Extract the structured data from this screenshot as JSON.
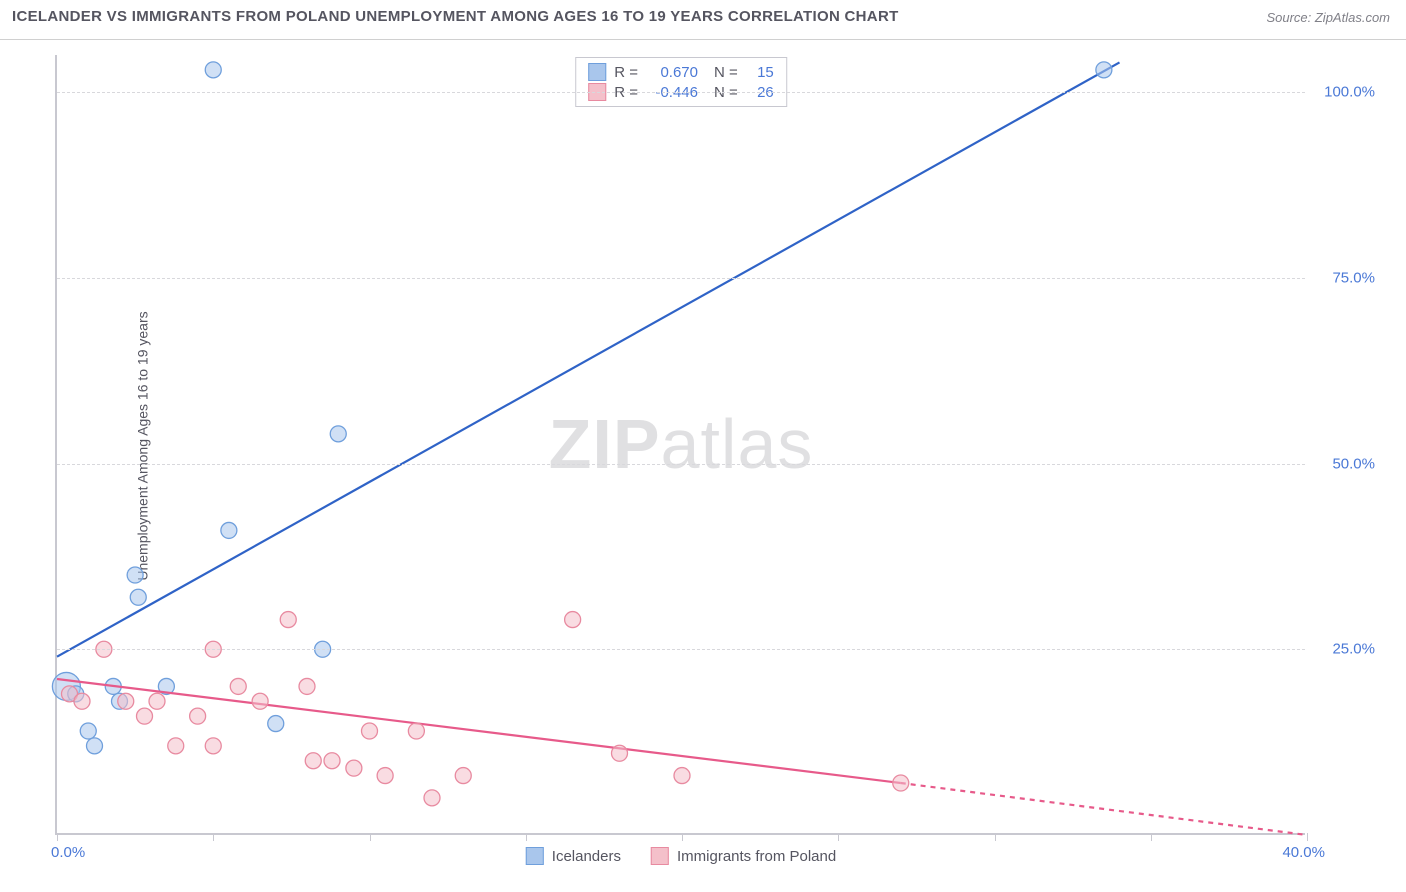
{
  "title": "ICELANDER VS IMMIGRANTS FROM POLAND UNEMPLOYMENT AMONG AGES 16 TO 19 YEARS CORRELATION CHART",
  "source": "Source: ZipAtlas.com",
  "ylabel": "Unemployment Among Ages 16 to 19 years",
  "watermark_a": "ZIP",
  "watermark_b": "atlas",
  "chart": {
    "type": "scatter-regression",
    "background_color": "#ffffff",
    "grid_color": "#d8d8dc",
    "axis_color": "#c8c8d0",
    "text_color": "#555560",
    "tick_label_color": "#4a78d6",
    "xlim": [
      0,
      40
    ],
    "ylim": [
      0,
      105
    ],
    "xtick_positions": [
      0,
      5,
      10,
      15,
      20,
      25,
      30,
      35,
      40
    ],
    "xtick_label_left": "0.0%",
    "xtick_label_right": "40.0%",
    "ytick_positions": [
      25,
      50,
      75,
      100
    ],
    "ytick_labels": [
      "25.0%",
      "50.0%",
      "75.0%",
      "100.0%"
    ],
    "series": [
      {
        "key": "icelanders",
        "label": "Icelanders",
        "color_fill": "#a9c6ec",
        "color_stroke": "#6f9fdc",
        "line_color": "#2f63c7",
        "line_width": 2.2,
        "marker_radius": 8,
        "R": "0.670",
        "N": "15",
        "regression": {
          "x1": 0,
          "y1": 24,
          "x2": 34,
          "y2": 104
        },
        "points": [
          {
            "x": 0.3,
            "y": 20,
            "r": 14
          },
          {
            "x": 0.6,
            "y": 19,
            "r": 8
          },
          {
            "x": 1.0,
            "y": 14,
            "r": 8
          },
          {
            "x": 1.2,
            "y": 12,
            "r": 8
          },
          {
            "x": 1.8,
            "y": 20,
            "r": 8
          },
          {
            "x": 2.0,
            "y": 18,
            "r": 8
          },
          {
            "x": 2.5,
            "y": 35,
            "r": 8
          },
          {
            "x": 2.6,
            "y": 32,
            "r": 8
          },
          {
            "x": 3.5,
            "y": 20,
            "r": 8
          },
          {
            "x": 5.5,
            "y": 41,
            "r": 8
          },
          {
            "x": 5.0,
            "y": 103,
            "r": 8
          },
          {
            "x": 7.0,
            "y": 15,
            "r": 8
          },
          {
            "x": 8.5,
            "y": 25,
            "r": 8
          },
          {
            "x": 9.0,
            "y": 54,
            "r": 8
          },
          {
            "x": 33.5,
            "y": 103,
            "r": 8
          }
        ]
      },
      {
        "key": "poland",
        "label": "Immigrants from Poland",
        "color_fill": "#f4c0ca",
        "color_stroke": "#e88aa0",
        "line_color": "#e75a8a",
        "line_width": 2.2,
        "marker_radius": 8,
        "R": "-0.446",
        "N": "26",
        "regression_solid": {
          "x1": 0,
          "y1": 21,
          "x2": 27,
          "y2": 7
        },
        "regression_dashed": {
          "x1": 27,
          "y1": 7,
          "x2": 40,
          "y2": 0
        },
        "points": [
          {
            "x": 0.4,
            "y": 19
          },
          {
            "x": 0.8,
            "y": 18
          },
          {
            "x": 1.5,
            "y": 25
          },
          {
            "x": 2.2,
            "y": 18
          },
          {
            "x": 2.8,
            "y": 16
          },
          {
            "x": 3.2,
            "y": 18
          },
          {
            "x": 3.8,
            "y": 12
          },
          {
            "x": 4.5,
            "y": 16
          },
          {
            "x": 5.0,
            "y": 25
          },
          {
            "x": 5.0,
            "y": 12
          },
          {
            "x": 5.8,
            "y": 20
          },
          {
            "x": 6.5,
            "y": 18
          },
          {
            "x": 7.4,
            "y": 29
          },
          {
            "x": 8.0,
            "y": 20
          },
          {
            "x": 8.2,
            "y": 10
          },
          {
            "x": 8.8,
            "y": 10
          },
          {
            "x": 9.5,
            "y": 9
          },
          {
            "x": 10.0,
            "y": 14
          },
          {
            "x": 10.5,
            "y": 8
          },
          {
            "x": 11.5,
            "y": 14
          },
          {
            "x": 12.0,
            "y": 5
          },
          {
            "x": 13.0,
            "y": 8
          },
          {
            "x": 16.5,
            "y": 29
          },
          {
            "x": 18.0,
            "y": 11
          },
          {
            "x": 20.0,
            "y": 8
          },
          {
            "x": 27.0,
            "y": 7
          }
        ]
      }
    ]
  }
}
